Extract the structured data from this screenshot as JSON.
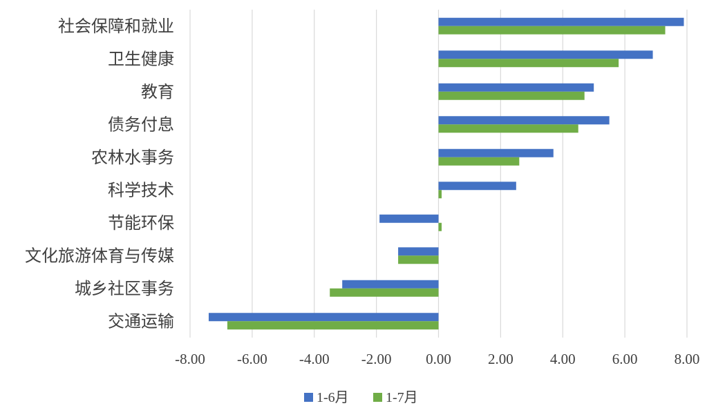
{
  "chart_data": {
    "type": "bar",
    "orientation": "horizontal",
    "categories": [
      "社会保障和就业",
      "卫生健康",
      "教育",
      "债务付息",
      "农林水事务",
      "科学技术",
      "节能环保",
      "文化旅游体育与传媒",
      "城乡社区事务",
      "交通运输"
    ],
    "series": [
      {
        "name": "1-6月",
        "color": "#4472C4",
        "values": [
          7.9,
          6.9,
          5.0,
          5.5,
          3.7,
          2.5,
          -1.9,
          -1.3,
          -3.1,
          -7.4
        ]
      },
      {
        "name": "1-7月",
        "color": "#70AD47",
        "values": [
          7.3,
          5.8,
          4.7,
          4.5,
          2.6,
          0.1,
          0.1,
          -1.3,
          -3.5,
          -6.8
        ]
      }
    ],
    "xlim": [
      -8,
      8
    ],
    "xticks": [
      "-8.00",
      "-6.00",
      "-4.00",
      "-2.00",
      "0.00",
      "2.00",
      "4.00",
      "6.00",
      "8.00"
    ],
    "grid": true,
    "legend": "bottom"
  }
}
